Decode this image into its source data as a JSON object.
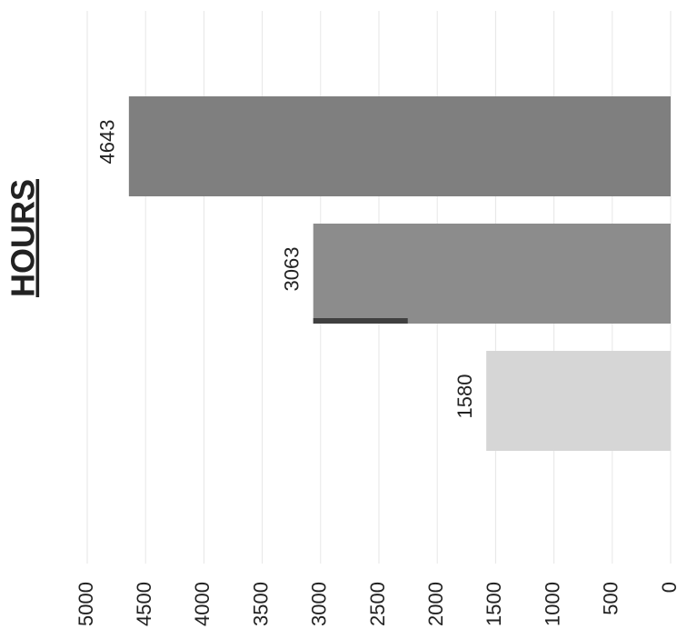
{
  "chart_data": {
    "type": "bar",
    "orientation": "horizontal-rotated",
    "title": "HOURS",
    "categories": [
      "",
      "",
      ""
    ],
    "values": [
      4643,
      3063,
      1580
    ],
    "bar_colors": [
      "#7f7f7f",
      "#8c8c8c",
      "#d6d6d6"
    ],
    "accent_bar_color": "#404040",
    "ylim": [
      0,
      5000
    ],
    "ticks": [
      5000,
      4500,
      4000,
      3500,
      3000,
      2500,
      2000,
      1500,
      1000,
      500,
      0
    ],
    "grid": true,
    "legend": "none"
  }
}
